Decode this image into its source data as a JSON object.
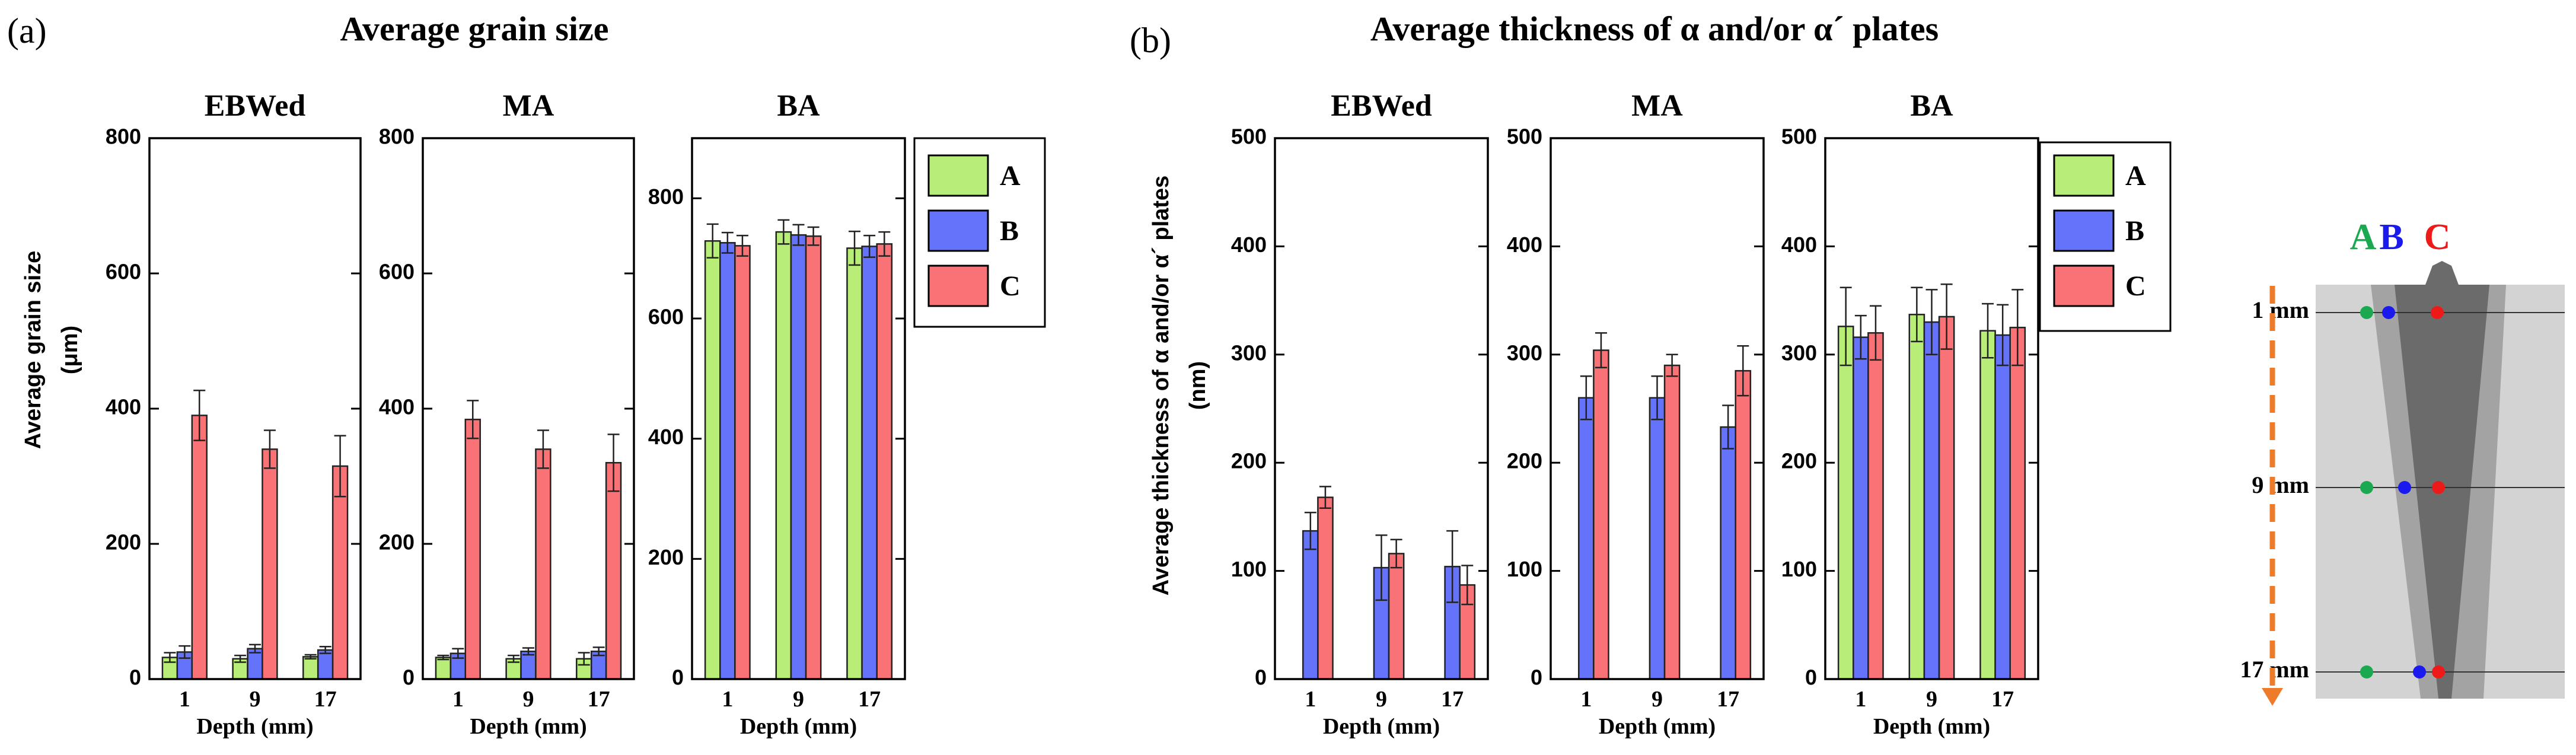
{
  "panel_a": {
    "tag": "(a)",
    "title": "Average grain size",
    "ylabel_line1": "Average grain size",
    "ylabel_line2": "(μm)"
  },
  "panel_b": {
    "tag": "(b)",
    "title": "Average thickness of α and/or α´ plates",
    "ylabel_line1": "Average thickness of α and/or α´ plates",
    "ylabel_line2": "(nm)"
  },
  "legend": {
    "A": "A",
    "B": "B",
    "C": "C"
  },
  "colors": {
    "A": "#b8ee78",
    "B": "#6573fa",
    "C": "#f97276"
  },
  "schematic": {
    "label_A": "A",
    "label_B": "B",
    "label_C": "C",
    "depth_labels": [
      "1 mm",
      "9 mm",
      "17 mm"
    ],
    "colors": {
      "A": "#1aa850",
      "B": "#1a1aee",
      "C": "#ee1a1a",
      "arrow": "#ee7b2a"
    }
  },
  "chart_data": [
    {
      "type": "bar",
      "panel": "a",
      "title": "EBWed",
      "categories": [
        "1",
        "9",
        "17"
      ],
      "xlabel": "Depth (mm)",
      "ylabel": "Average grain size (μm)",
      "ylim": [
        0,
        800
      ],
      "yticks": [
        0,
        200,
        400,
        600,
        800
      ],
      "show_yticklabels": true,
      "series": [
        {
          "name": "A",
          "values": [
            32,
            30,
            33
          ],
          "errors": [
            7,
            5,
            3
          ]
        },
        {
          "name": "B",
          "values": [
            40,
            45,
            43
          ],
          "errors": [
            9,
            6,
            5
          ]
        },
        {
          "name": "C",
          "values": [
            390,
            340,
            315
          ],
          "errors": [
            37,
            28,
            45
          ]
        }
      ]
    },
    {
      "type": "bar",
      "panel": "a",
      "title": "MA",
      "categories": [
        "1",
        "9",
        "17"
      ],
      "xlabel": "Depth (mm)",
      "ylabel": "Average grain size (μm)",
      "ylim": [
        0,
        800
      ],
      "yticks": [
        0,
        200,
        400,
        600,
        800
      ],
      "show_yticklabels": true,
      "series": [
        {
          "name": "A",
          "values": [
            32,
            30,
            30
          ],
          "errors": [
            3,
            5,
            9
          ]
        },
        {
          "name": "B",
          "values": [
            38,
            41,
            41
          ],
          "errors": [
            7,
            5,
            6
          ]
        },
        {
          "name": "C",
          "values": [
            384,
            340,
            320
          ],
          "errors": [
            28,
            28,
            42
          ]
        }
      ]
    },
    {
      "type": "bar",
      "panel": "a",
      "title": "BA",
      "categories": [
        "1",
        "9",
        "17"
      ],
      "xlabel": "Depth (mm)",
      "ylabel": "Average grain size (μm)",
      "ylim": [
        0,
        900
      ],
      "yticks": [
        0,
        200,
        400,
        600,
        800
      ],
      "show_yticklabels": true,
      "series": [
        {
          "name": "A",
          "values": [
            729,
            744,
            717
          ],
          "errors": [
            28,
            20,
            28
          ]
        },
        {
          "name": "B",
          "values": [
            726,
            739,
            720
          ],
          "errors": [
            17,
            17,
            18
          ]
        },
        {
          "name": "C",
          "values": [
            721,
            737,
            724
          ],
          "errors": [
            17,
            15,
            20
          ]
        }
      ]
    },
    {
      "type": "bar",
      "panel": "b",
      "title": "EBWed",
      "categories": [
        "1",
        "9",
        "17"
      ],
      "xlabel": "Depth (mm)",
      "ylabel": "Average thickness of α and/or α´ plates (nm)",
      "ylim": [
        0,
        500
      ],
      "yticks": [
        0,
        100,
        200,
        300,
        400,
        500
      ],
      "show_yticklabels": true,
      "series": [
        {
          "name": "A",
          "values": [
            null,
            null,
            null
          ],
          "errors": [
            null,
            null,
            null
          ]
        },
        {
          "name": "B",
          "values": [
            137,
            103,
            104
          ],
          "errors": [
            17,
            30,
            33
          ]
        },
        {
          "name": "C",
          "values": [
            168,
            116,
            87
          ],
          "errors": [
            10,
            13,
            18
          ]
        }
      ]
    },
    {
      "type": "bar",
      "panel": "b",
      "title": "MA",
      "categories": [
        "1",
        "9",
        "17"
      ],
      "xlabel": "Depth (mm)",
      "ylabel": "Average thickness of α and/or α´ plates (nm)",
      "ylim": [
        0,
        500
      ],
      "yticks": [
        0,
        100,
        200,
        300,
        400,
        500
      ],
      "show_yticklabels": true,
      "series": [
        {
          "name": "A",
          "values": [
            null,
            null,
            null
          ],
          "errors": [
            null,
            null,
            null
          ]
        },
        {
          "name": "B",
          "values": [
            260,
            260,
            233
          ],
          "errors": [
            20,
            20,
            20
          ]
        },
        {
          "name": "C",
          "values": [
            304,
            290,
            285
          ],
          "errors": [
            16,
            10,
            23
          ]
        }
      ]
    },
    {
      "type": "bar",
      "panel": "b",
      "title": "BA",
      "categories": [
        "1",
        "9",
        "17"
      ],
      "xlabel": "Depth (mm)",
      "ylabel": "Average thickness of α and/or α´ plates (nm)",
      "ylim": [
        0,
        500
      ],
      "yticks": [
        0,
        100,
        200,
        300,
        400,
        500
      ],
      "show_yticklabels": true,
      "series": [
        {
          "name": "A",
          "values": [
            326,
            337,
            322
          ],
          "errors": [
            36,
            25,
            25
          ]
        },
        {
          "name": "B",
          "values": [
            316,
            330,
            318
          ],
          "errors": [
            20,
            30,
            28
          ]
        },
        {
          "name": "C",
          "values": [
            320,
            335,
            325
          ],
          "errors": [
            25,
            30,
            35
          ]
        }
      ]
    }
  ]
}
